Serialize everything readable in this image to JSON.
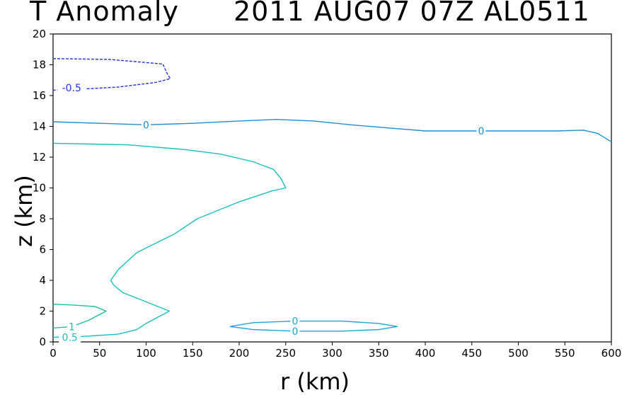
{
  "chart_data": {
    "type": "contour",
    "title_left": "T Anomaly",
    "title_right": "2011 AUG07 07Z  AL0511",
    "xlabel": "r (km)",
    "ylabel": "z (km)",
    "xlim": [
      0,
      600
    ],
    "ylim": [
      0,
      20
    ],
    "x_ticks": [
      0,
      50,
      100,
      150,
      200,
      250,
      300,
      350,
      400,
      450,
      500,
      550,
      600
    ],
    "y_ticks": [
      0,
      2,
      4,
      6,
      8,
      10,
      12,
      14,
      16,
      18,
      20
    ],
    "grid": false,
    "contours": [
      {
        "level": -0.5,
        "color": "#2233dd",
        "dashed": true,
        "label": "-0.5",
        "label_at": [
          20,
          16.5
        ],
        "points": [
          [
            0,
            18.4
          ],
          [
            60,
            18.35
          ],
          [
            118,
            18.05
          ],
          [
            122,
            17.5
          ],
          [
            126,
            17.1
          ],
          [
            110,
            16.85
          ],
          [
            70,
            16.55
          ],
          [
            25,
            16.4
          ],
          [
            0,
            16.35
          ]
        ]
      },
      {
        "level": 0,
        "color": "#1a8fd8",
        "dashed": false,
        "label": "0",
        "label_at": [
          100,
          14.1
        ],
        "label2": "0",
        "label2_at": [
          460,
          13.7
        ],
        "points": [
          [
            0,
            14.3
          ],
          [
            50,
            14.2
          ],
          [
            100,
            14.1
          ],
          [
            150,
            14.2
          ],
          [
            200,
            14.35
          ],
          [
            240,
            14.45
          ],
          [
            280,
            14.35
          ],
          [
            320,
            14.1
          ],
          [
            360,
            13.9
          ],
          [
            400,
            13.7
          ],
          [
            450,
            13.7
          ],
          [
            500,
            13.7
          ],
          [
            540,
            13.7
          ],
          [
            570,
            13.75
          ],
          [
            585,
            13.55
          ],
          [
            600,
            13.0
          ]
        ]
      },
      {
        "level": 0,
        "color": "#1aa6d6",
        "dashed": false,
        "label": "0",
        "label_at": [
          260,
          1.35
        ],
        "label2": "0",
        "label2_at": [
          260,
          0.7
        ],
        "points": [
          [
            190,
            1.0
          ],
          [
            215,
            1.25
          ],
          [
            260,
            1.35
          ],
          [
            310,
            1.35
          ],
          [
            350,
            1.2
          ],
          [
            370,
            1.0
          ],
          [
            350,
            0.8
          ],
          [
            310,
            0.7
          ],
          [
            260,
            0.7
          ],
          [
            215,
            0.8
          ],
          [
            190,
            1.0
          ]
        ]
      },
      {
        "level": 0.5,
        "color": "#1abfc0",
        "dashed": false,
        "label": "0.5",
        "label_at": [
          18,
          0.3
        ],
        "points": [
          [
            0,
            0.3
          ],
          [
            30,
            0.35
          ],
          [
            70,
            0.5
          ],
          [
            90,
            0.8
          ],
          [
            100,
            1.2
          ],
          [
            125,
            2.0
          ],
          [
            100,
            2.6
          ],
          [
            75,
            3.2
          ],
          [
            65,
            3.7
          ],
          [
            62,
            4.0
          ],
          [
            70,
            4.7
          ],
          [
            90,
            5.8
          ],
          [
            100,
            6.1
          ],
          [
            130,
            7.0
          ],
          [
            155,
            8.0
          ],
          [
            200,
            9.1
          ],
          [
            235,
            9.8
          ],
          [
            250,
            10.0
          ],
          [
            245,
            10.6
          ],
          [
            237,
            11.2
          ],
          [
            215,
            11.7
          ],
          [
            180,
            12.2
          ],
          [
            140,
            12.5
          ],
          [
            80,
            12.8
          ],
          [
            0,
            12.9
          ]
        ]
      },
      {
        "level": 1,
        "color": "#1ac09a",
        "dashed": false,
        "label": "1",
        "label_at": [
          20,
          1.0
        ],
        "points": [
          [
            0,
            0.9
          ],
          [
            20,
            1.0
          ],
          [
            38,
            1.4
          ],
          [
            57,
            2.0
          ],
          [
            45,
            2.3
          ],
          [
            20,
            2.4
          ],
          [
            0,
            2.45
          ]
        ]
      }
    ]
  }
}
